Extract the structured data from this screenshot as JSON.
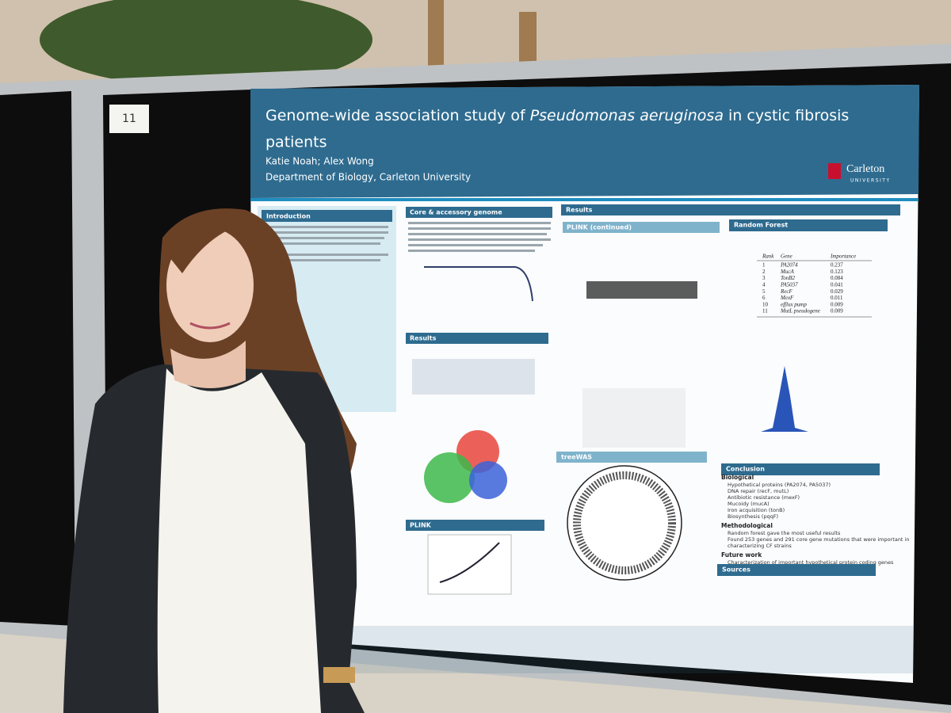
{
  "board_number": "11",
  "poster": {
    "title_parts": [
      "Genome-wide association study of ",
      "Pseudomonas aeruginosa",
      " in cystic fibrosis",
      "patients"
    ],
    "authors": "Katie Noah; Alex Wong",
    "affiliation": "Department of Biology, Carleton University",
    "logo": "Carleton",
    "logo_sub": "UNIVERSITY",
    "sections": {
      "introduction": "Introduction",
      "core_genome": "Core & accessory genome",
      "results_left": "Results",
      "plink": "PLINK",
      "results_main": "Results",
      "plink_continued": "PLINK (continued)",
      "treewas": "treeWAS",
      "random_forest": "Random Forest",
      "conclusion": "Conclusion",
      "sources": "Sources"
    },
    "random_forest_table": {
      "header": [
        "Rank",
        "Gene",
        "Importance"
      ],
      "rows": [
        [
          1,
          "PA2074",
          0.237
        ],
        [
          2,
          "MucA",
          0.123
        ],
        [
          3,
          "TonB2",
          0.084
        ],
        [
          4,
          "PA5037",
          0.041
        ],
        [
          5,
          "RecF",
          0.029
        ],
        [
          6,
          "MexF",
          0.011
        ],
        [
          10,
          "efflux pump",
          0.009
        ],
        [
          11,
          "MutL pseudogene",
          0.009
        ]
      ]
    },
    "conclusion": {
      "biological_heading": "Biological",
      "biological": [
        "Hypothetical proteins (PA2074, PA5037)",
        "DNA repair (recF, mutL)",
        "Antibiotic resistance (mexF)",
        "Mucoidy (mucA)",
        "Iron acquisition (tonB)",
        "Biosynthesis (pqqF)"
      ],
      "methodological_heading": "Methodological",
      "methodological": [
        "Random forest gave the most useful results",
        "Found 253 genes and 291 core gene mutations that were important in",
        "characterizing CF strains"
      ],
      "future_heading": "Future work",
      "future": [
        "Characterization of important hypothetical protein coding genes"
      ]
    }
  }
}
